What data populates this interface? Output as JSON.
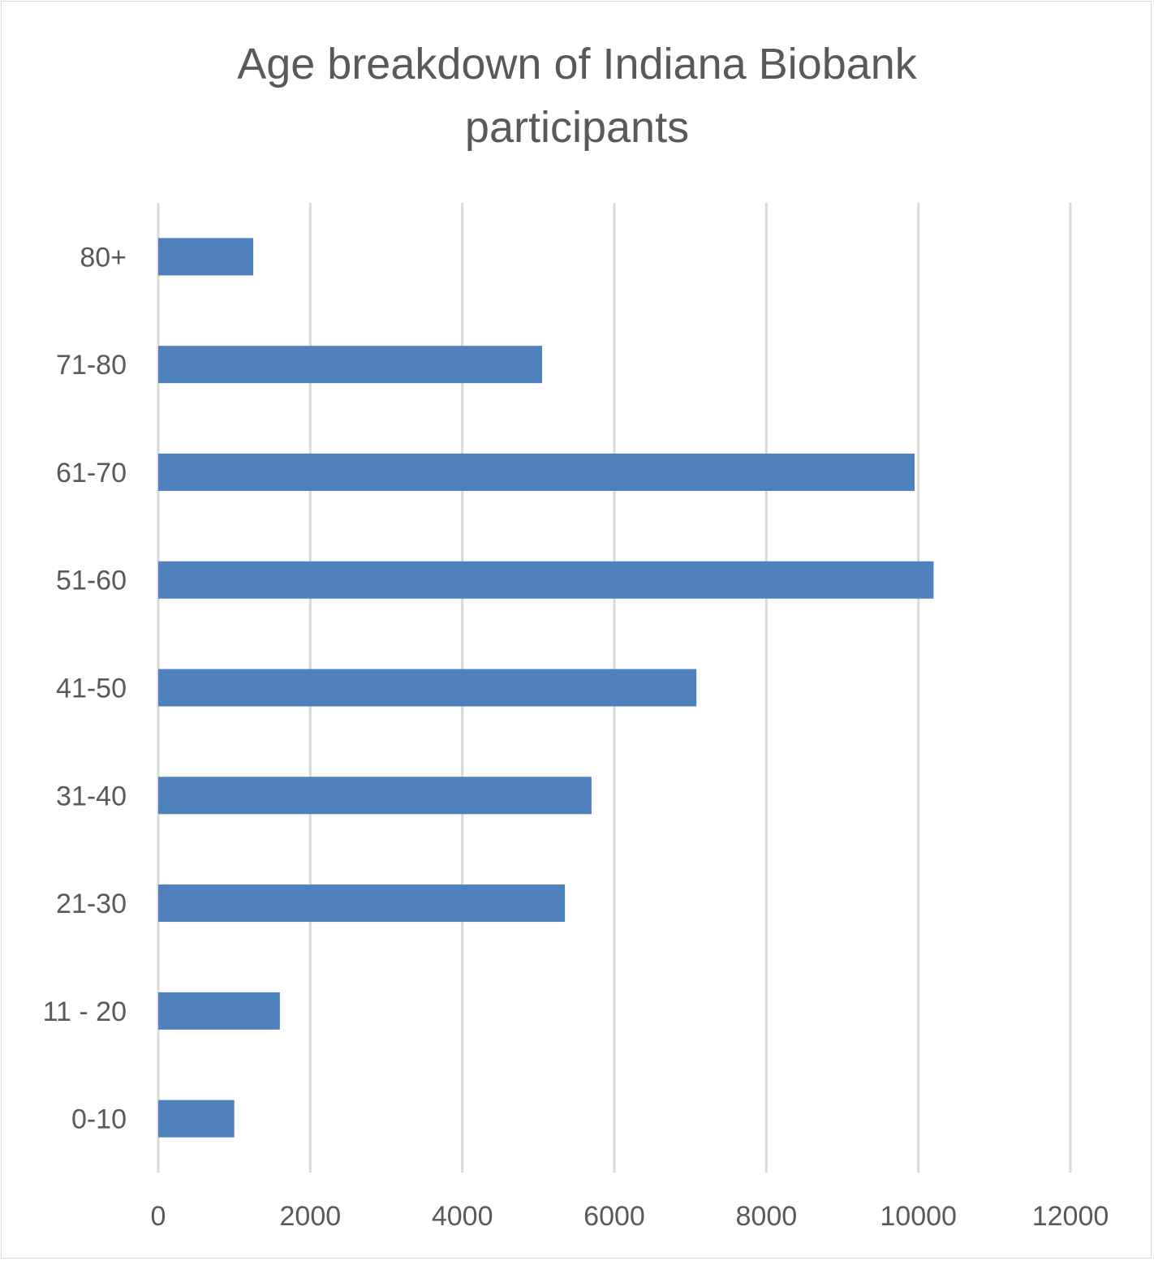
{
  "chart_data": {
    "type": "bar",
    "orientation": "horizontal",
    "title_lines": [
      "Age breakdown of Indiana Biobank",
      "participants"
    ],
    "categories": [
      "80+",
      "71-80",
      "61-70",
      "51-60",
      "41-50",
      "31-40",
      "21-30",
      "11 - 20",
      "0-10"
    ],
    "values": [
      1250,
      5050,
      9950,
      10200,
      7080,
      5700,
      5350,
      1600,
      1000
    ],
    "xlim": [
      0,
      12000
    ],
    "x_ticks": [
      "0",
      "2000",
      "4000",
      "6000",
      "8000",
      "10000",
      "12000"
    ],
    "grid": "vertical",
    "legend": "none",
    "colors": {
      "bar": "#4f81bd",
      "grid": "#d9d9d9",
      "text": "#595959",
      "border": "#d9d9d9"
    }
  }
}
